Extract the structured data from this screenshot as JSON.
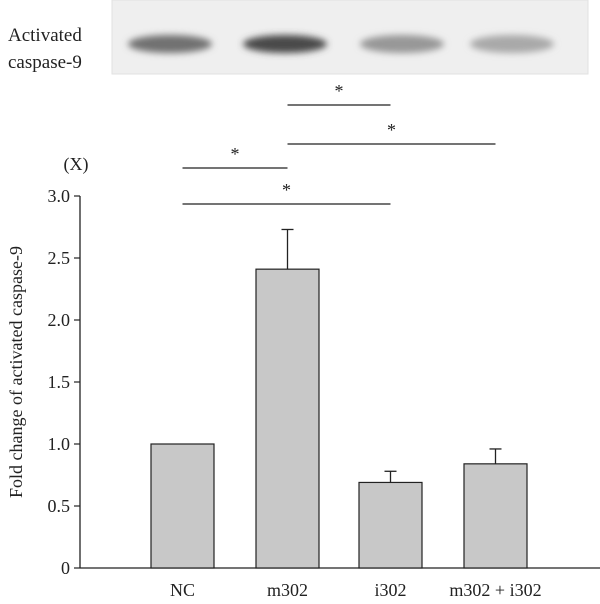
{
  "blot": {
    "label_line1": "Activated",
    "label_line2": "caspase-9",
    "band_intensity": [
      0.7,
      0.92,
      0.48,
      0.38
    ]
  },
  "chart_data": {
    "type": "bar",
    "categories": [
      "NC",
      "m302",
      "i302",
      "m302 + i302"
    ],
    "values": [
      1.0,
      2.41,
      0.69,
      0.84
    ],
    "errors": [
      0,
      0.32,
      0.09,
      0.12
    ],
    "ylabel": "Fold change of activated caspase-9",
    "y_unit": "(X)",
    "ylim": [
      0,
      3.0
    ],
    "yticks": [
      "0",
      "0.5",
      "1.0",
      "1.5",
      "2.0",
      "2.5",
      "3.0"
    ],
    "ytick_values": [
      0,
      0.5,
      1.0,
      1.5,
      2.0,
      2.5,
      3.0
    ],
    "bar_color": "#c8c8c8",
    "significance": [
      {
        "from": "m302",
        "to": "i302",
        "label": "*"
      },
      {
        "from": "m302",
        "to": "m302 + i302",
        "label": "*"
      },
      {
        "from": "NC",
        "to": "m302",
        "label": "*"
      },
      {
        "from": "NC",
        "to": "i302",
        "label": "*"
      }
    ]
  }
}
